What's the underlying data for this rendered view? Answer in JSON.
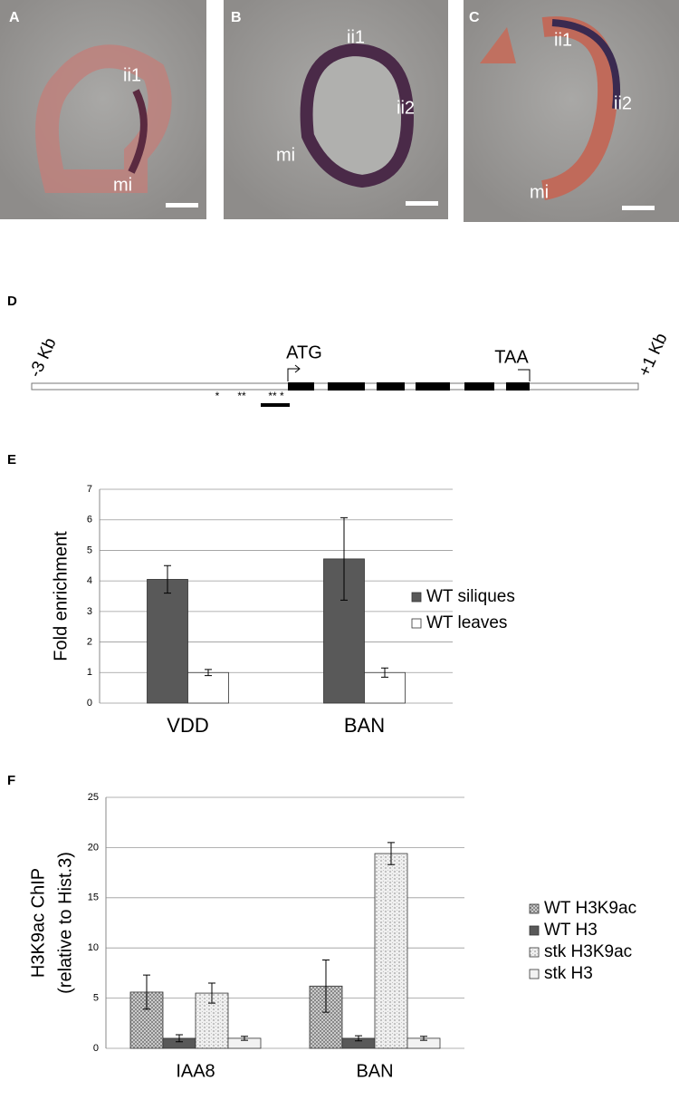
{
  "micrographs": [
    {
      "letter": "A",
      "labels": [
        "ii1",
        "mi"
      ]
    },
    {
      "letter": "B",
      "labels": [
        "ii1",
        "ii2",
        "mi"
      ]
    },
    {
      "letter": "C",
      "labels": [
        "ii1",
        "ii2",
        "mi"
      ]
    }
  ],
  "gene_diagram": {
    "letter": "D",
    "left_label": "-3 Kb",
    "right_label": "+1 Kb",
    "start_label": "ATG",
    "stop_label": "TAA",
    "marks": [
      "*",
      "**",
      "** *"
    ]
  },
  "chart_data": [
    {
      "type": "bar",
      "panel": "E",
      "ylabel": "Fold enrichment",
      "categories": [
        "VDD",
        "BAN"
      ],
      "series": [
        {
          "name": "WT siliques",
          "color": "#595959",
          "values": [
            4.05,
            4.72
          ],
          "errors": [
            0.45,
            1.35
          ]
        },
        {
          "name": "WT leaves",
          "color": "#ffffff",
          "values": [
            1.0,
            1.0
          ],
          "errors": [
            0.1,
            0.15
          ]
        }
      ],
      "ylim": [
        0,
        7
      ],
      "yticks": [
        0,
        1,
        2,
        3,
        4,
        5,
        6,
        7
      ],
      "grid": true,
      "legend": "right"
    },
    {
      "type": "bar",
      "panel": "F",
      "ylabel": [
        "H3K9ac ChIP",
        "(relative to Hist.3)"
      ],
      "categories": [
        "IAA8",
        "BAN"
      ],
      "series": [
        {
          "name": "WT H3K9ac",
          "color": "#cccccc",
          "pattern": "crosshatch",
          "values": [
            5.6,
            6.2
          ],
          "errors": [
            1.7,
            2.6
          ]
        },
        {
          "name": "WT H3",
          "color": "#595959",
          "values": [
            1.0,
            1.0
          ],
          "errors": [
            0.35,
            0.25
          ]
        },
        {
          "name": "stk H3K9ac",
          "color": "#e6e6e6",
          "pattern": "dots",
          "values": [
            5.5,
            19.4
          ],
          "errors": [
            1.0,
            1.1
          ]
        },
        {
          "name": "stk H3",
          "color": "#f2f2f2",
          "values": [
            1.0,
            1.0
          ],
          "errors": [
            0.2,
            0.2
          ]
        }
      ],
      "ylim": [
        0,
        25
      ],
      "yticks": [
        0,
        5,
        10,
        15,
        20,
        25
      ],
      "grid": true,
      "legend": "right"
    }
  ]
}
